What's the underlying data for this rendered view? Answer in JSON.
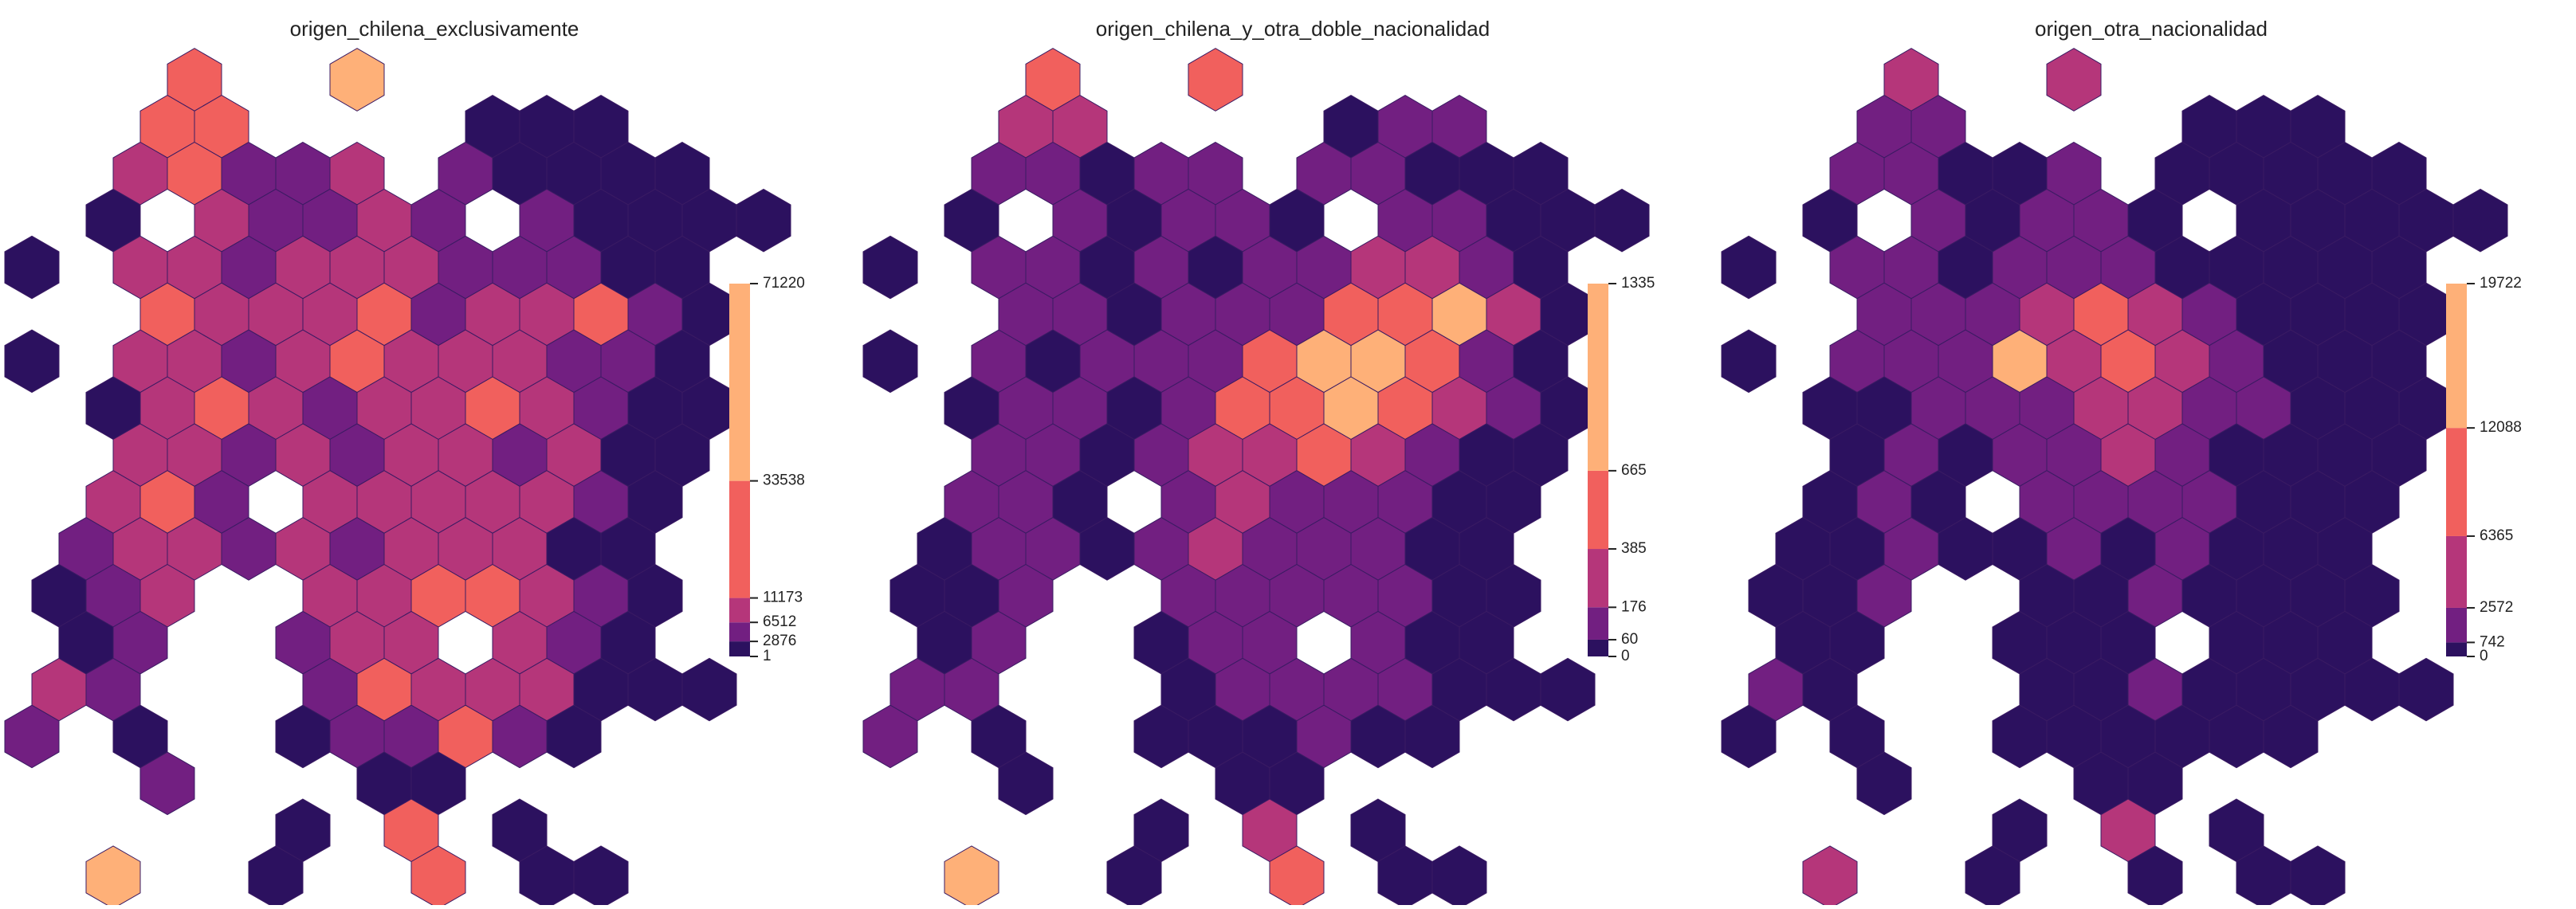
{
  "chart_data": [
    {
      "type": "hexbin",
      "title": "origen_chilena_exclusivamente",
      "clim": [
        1,
        71220
      ],
      "cticks": [
        1,
        2876,
        6512,
        11173,
        33538,
        71220
      ],
      "colors": [
        "#2c115f",
        "#721f81",
        "#b5367a",
        "#f1605d",
        "#feb078"
      ],
      "grid": [
        [
          null,
          null,
          null,
          22000,
          null,
          null,
          45000,
          null,
          null,
          null,
          null,
          null,
          null,
          null
        ],
        [
          null,
          null,
          22000,
          22000,
          null,
          null,
          null,
          null,
          1500,
          1500,
          1500,
          null,
          null,
          null
        ],
        [
          null,
          null,
          9000,
          22000,
          4800,
          4800,
          9000,
          null,
          4800,
          1500,
          1500,
          1500,
          1500,
          null
        ],
        [
          null,
          1500,
          null,
          9000,
          4800,
          4800,
          9000,
          4800,
          null,
          4800,
          1500,
          1500,
          1500,
          1500
        ],
        [
          1500,
          null,
          9000,
          9000,
          4800,
          9000,
          9000,
          9000,
          4800,
          4800,
          4800,
          1500,
          1500,
          null
        ],
        [
          null,
          null,
          22000,
          9000,
          9000,
          9000,
          22000,
          4800,
          9000,
          9000,
          22000,
          4800,
          1500,
          null
        ],
        [
          1500,
          null,
          9000,
          9000,
          4800,
          9000,
          22000,
          9000,
          9000,
          9000,
          4800,
          4800,
          1500,
          null
        ],
        [
          null,
          1500,
          9000,
          22000,
          9000,
          4800,
          9000,
          9000,
          22000,
          9000,
          4800,
          1500,
          1500,
          null
        ],
        [
          null,
          null,
          9000,
          9000,
          4800,
          9000,
          4800,
          9000,
          9000,
          4800,
          9000,
          1500,
          1500,
          null
        ],
        [
          null,
          9000,
          22000,
          4800,
          null,
          9000,
          9000,
          9000,
          9000,
          9000,
          4800,
          1500,
          null,
          null
        ],
        [
          null,
          4800,
          9000,
          9000,
          4800,
          9000,
          4800,
          9000,
          9000,
          9000,
          1500,
          1500,
          null,
          null
        ],
        [
          1500,
          4800,
          9000,
          null,
          null,
          9000,
          9000,
          22000,
          22000,
          9000,
          4800,
          1500,
          null,
          null
        ],
        [
          null,
          1500,
          4800,
          null,
          null,
          4800,
          9000,
          9000,
          null,
          9000,
          4800,
          1500,
          null,
          null
        ],
        [
          9000,
          4800,
          null,
          null,
          null,
          4800,
          22000,
          9000,
          9000,
          9000,
          1500,
          1500,
          1500,
          null
        ],
        [
          4800,
          null,
          1500,
          null,
          null,
          1500,
          4800,
          4800,
          22000,
          4800,
          1500,
          null,
          null,
          null
        ],
        [
          null,
          null,
          4800,
          null,
          null,
          null,
          1500,
          1500,
          null,
          null,
          null,
          null,
          null,
          null
        ],
        [
          null,
          null,
          null,
          null,
          null,
          1500,
          null,
          22000,
          null,
          1500,
          null,
          null,
          null,
          null
        ],
        [
          null,
          45000,
          null,
          null,
          1500,
          null,
          null,
          22000,
          null,
          1500,
          1500,
          null,
          null,
          null
        ]
      ]
    },
    {
      "type": "hexbin",
      "title": "origen_chilena_y_otra_doble_nacionalidad",
      "clim": [
        0,
        1335
      ],
      "cticks": [
        0,
        60,
        176,
        385,
        665,
        1335
      ],
      "colors": [
        "#2c115f",
        "#721f81",
        "#b5367a",
        "#f1605d",
        "#feb078"
      ],
      "grid": [
        [
          null,
          null,
          null,
          520,
          null,
          null,
          520,
          null,
          null,
          null,
          null,
          null,
          null,
          null
        ],
        [
          null,
          null,
          280,
          280,
          null,
          null,
          null,
          null,
          30,
          120,
          120,
          null,
          null,
          null
        ],
        [
          null,
          null,
          120,
          120,
          30,
          120,
          120,
          null,
          120,
          120,
          30,
          30,
          30,
          null
        ],
        [
          null,
          30,
          null,
          120,
          30,
          120,
          120,
          30,
          null,
          120,
          120,
          30,
          30,
          30
        ],
        [
          30,
          null,
          120,
          120,
          30,
          120,
          30,
          120,
          120,
          280,
          280,
          120,
          30,
          null
        ],
        [
          null,
          null,
          120,
          120,
          30,
          120,
          120,
          120,
          520,
          520,
          900,
          280,
          30,
          null
        ],
        [
          30,
          null,
          120,
          30,
          120,
          120,
          120,
          520,
          900,
          900,
          520,
          120,
          30,
          null
        ],
        [
          null,
          30,
          120,
          120,
          30,
          120,
          520,
          520,
          900,
          520,
          280,
          120,
          30,
          null
        ],
        [
          null,
          null,
          120,
          120,
          30,
          120,
          280,
          280,
          520,
          280,
          120,
          30,
          30,
          null
        ],
        [
          null,
          120,
          120,
          30,
          null,
          120,
          280,
          120,
          120,
          120,
          30,
          30,
          null,
          null
        ],
        [
          null,
          30,
          120,
          120,
          30,
          120,
          280,
          120,
          120,
          120,
          30,
          30,
          null,
          null
        ],
        [
          30,
          30,
          120,
          null,
          null,
          120,
          120,
          120,
          120,
          120,
          30,
          30,
          null,
          null
        ],
        [
          null,
          30,
          120,
          null,
          null,
          30,
          120,
          120,
          null,
          120,
          30,
          30,
          null,
          null
        ],
        [
          120,
          120,
          null,
          null,
          null,
          30,
          120,
          120,
          120,
          120,
          30,
          30,
          30,
          null
        ],
        [
          120,
          null,
          30,
          null,
          null,
          30,
          30,
          30,
          120,
          30,
          30,
          null,
          null,
          null
        ],
        [
          null,
          null,
          30,
          null,
          null,
          null,
          30,
          30,
          null,
          null,
          null,
          null,
          null,
          null
        ],
        [
          null,
          null,
          null,
          null,
          null,
          30,
          null,
          280,
          null,
          30,
          null,
          null,
          null,
          null
        ],
        [
          null,
          900,
          null,
          null,
          30,
          null,
          null,
          520,
          null,
          30,
          30,
          null,
          null,
          null
        ]
      ]
    },
    {
      "type": "hexbin",
      "title": "origen_otra_nacionalidad",
      "clim": [
        0,
        19722
      ],
      "cticks": [
        0,
        742,
        2572,
        6365,
        12088,
        19722
      ],
      "colors": [
        "#2c115f",
        "#721f81",
        "#b5367a",
        "#f1605d",
        "#feb078"
      ],
      "grid": [
        [
          null,
          null,
          null,
          4400,
          null,
          null,
          4400,
          null,
          null,
          null,
          null,
          null,
          null,
          null
        ],
        [
          null,
          null,
          1600,
          1600,
          null,
          null,
          null,
          null,
          350,
          350,
          350,
          null,
          null,
          null
        ],
        [
          null,
          null,
          1600,
          1600,
          350,
          350,
          1600,
          null,
          350,
          350,
          350,
          350,
          350,
          null
        ],
        [
          null,
          350,
          null,
          1600,
          350,
          1600,
          1600,
          350,
          null,
          350,
          350,
          350,
          350,
          350
        ],
        [
          350,
          null,
          1600,
          1600,
          350,
          1600,
          1600,
          1600,
          350,
          350,
          350,
          350,
          350,
          null
        ],
        [
          null,
          null,
          1600,
          1600,
          1600,
          4400,
          9000,
          4400,
          1600,
          350,
          350,
          350,
          350,
          null
        ],
        [
          350,
          null,
          1600,
          1600,
          1600,
          15000,
          4400,
          9000,
          4400,
          1600,
          350,
          350,
          350,
          null
        ],
        [
          null,
          350,
          350,
          1600,
          1600,
          1600,
          4400,
          4400,
          1600,
          1600,
          350,
          350,
          350,
          null
        ],
        [
          null,
          null,
          350,
          1600,
          350,
          1600,
          1600,
          4400,
          1600,
          350,
          350,
          350,
          350,
          null
        ],
        [
          null,
          350,
          1600,
          350,
          null,
          1600,
          1600,
          1600,
          1600,
          350,
          350,
          350,
          null,
          null
        ],
        [
          null,
          350,
          350,
          1600,
          350,
          350,
          1600,
          350,
          1600,
          350,
          350,
          350,
          null,
          null
        ],
        [
          350,
          350,
          1600,
          null,
          null,
          350,
          350,
          1600,
          350,
          350,
          350,
          350,
          null,
          null
        ],
        [
          null,
          350,
          350,
          null,
          null,
          350,
          350,
          350,
          null,
          350,
          350,
          350,
          null,
          null
        ],
        [
          1600,
          350,
          null,
          null,
          null,
          350,
          350,
          1600,
          350,
          350,
          350,
          350,
          350,
          null
        ],
        [
          350,
          null,
          350,
          null,
          null,
          350,
          350,
          350,
          350,
          350,
          350,
          null,
          null,
          null
        ],
        [
          null,
          null,
          350,
          null,
          null,
          null,
          350,
          350,
          null,
          null,
          null,
          null,
          null,
          null
        ],
        [
          null,
          null,
          null,
          null,
          null,
          350,
          null,
          4400,
          null,
          350,
          null,
          null,
          null,
          null
        ],
        [
          null,
          4400,
          null,
          null,
          350,
          null,
          null,
          350,
          null,
          350,
          350,
          null,
          null,
          null
        ]
      ]
    }
  ]
}
